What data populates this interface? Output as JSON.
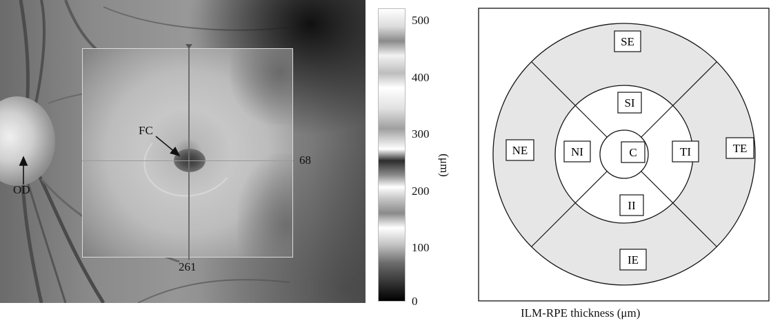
{
  "fundus": {
    "labels": {
      "fc": "FC",
      "od": "OD",
      "h_scan": "68",
      "v_scan": "261"
    }
  },
  "colorbar": {
    "ticks": [
      "500",
      "400",
      "300",
      "200",
      "100",
      "0"
    ],
    "unit": "(μm)"
  },
  "etdrs_grid": {
    "regions": [
      "SE",
      "SI",
      "NE",
      "NI",
      "C",
      "TI",
      "TE",
      "II",
      "IE"
    ],
    "fill": "#e6e6e6"
  },
  "caption": "ILM-RPE thickness (μm)"
}
